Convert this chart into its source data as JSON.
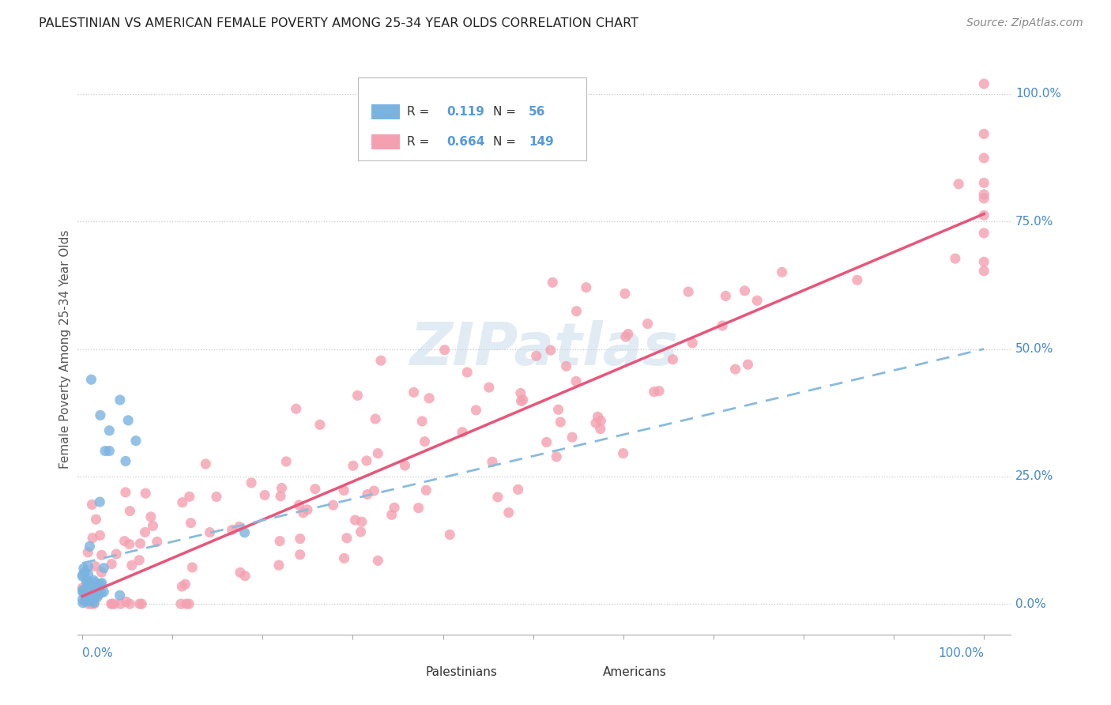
{
  "title": "PALESTINIAN VS AMERICAN FEMALE POVERTY AMONG 25-34 YEAR OLDS CORRELATION CHART",
  "source": "Source: ZipAtlas.com",
  "ylabel": "Female Poverty Among 25-34 Year Olds",
  "legend_label_1": "Palestinians",
  "legend_label_2": "Americans",
  "r1": 0.119,
  "n1": 56,
  "r2": 0.664,
  "n2": 149,
  "blue_color": "#7ab3e0",
  "pink_color": "#f4a0b0",
  "blue_line_color": "#88bbdd",
  "pink_line_color": "#e8557a",
  "watermark_color": "#c5d8ea",
  "background_color": "#ffffff",
  "grid_color": "#cccccc",
  "title_color": "#333333",
  "axis_label_color": "#5599dd",
  "right_label_color": "#4488cc"
}
